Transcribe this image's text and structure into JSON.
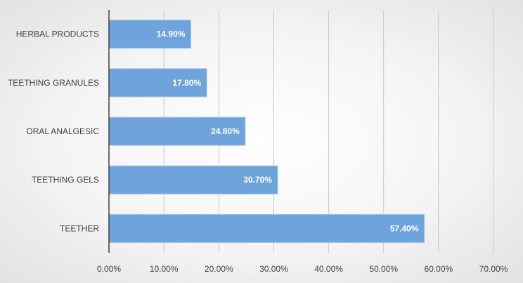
{
  "chart_data": {
    "type": "bar",
    "orientation": "horizontal",
    "title": "",
    "xlabel": "",
    "ylabel": "",
    "categories": [
      "HERBAL PRODUCTS",
      "TEETHING GRANULES",
      "ORAL ANALGESIC",
      "TEETHING GELS",
      "TEETHER"
    ],
    "values": [
      14.9,
      17.8,
      24.8,
      30.7,
      57.4
    ],
    "value_labels": [
      "14.90%",
      "17.80%",
      "24.80%",
      "30.70%",
      "57.40%"
    ],
    "xlim": [
      0,
      70
    ],
    "x_ticks": [
      0,
      10,
      20,
      30,
      40,
      50,
      60,
      70
    ],
    "x_tick_labels": [
      "0.00%",
      "10.00%",
      "20.00%",
      "30.00%",
      "40.00%",
      "50.00%",
      "60.00%",
      "70.00%"
    ],
    "grid": true,
    "legend": "none",
    "colors": {
      "bar": "#6fa3db",
      "bar_label": "#ffffff"
    }
  }
}
